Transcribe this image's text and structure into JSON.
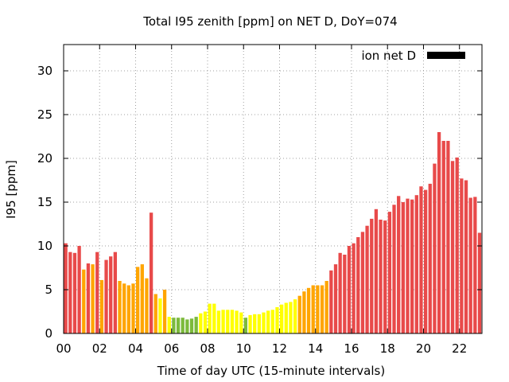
{
  "chart_data": {
    "type": "bar",
    "title": "Total I95 zenith [ppm] on NET D, DoY=074",
    "xlabel": "Time of day UTC (15-minute intervals)",
    "ylabel": "I95 [ppm]",
    "legend": {
      "label": "ion net D",
      "color": "#000000",
      "placement": "top-right"
    },
    "xlim": [
      0,
      23.25
    ],
    "ylim": [
      0,
      33
    ],
    "xticks": [
      0,
      2,
      4,
      6,
      8,
      10,
      12,
      14,
      16,
      18,
      20,
      22
    ],
    "xtick_labels": [
      "00",
      "02",
      "04",
      "06",
      "08",
      "10",
      "12",
      "14",
      "16",
      "18",
      "20",
      "22"
    ],
    "yticks": [
      0,
      5,
      10,
      15,
      20,
      25,
      30
    ],
    "ytick_labels": [
      "0",
      "5",
      "10",
      "15",
      "20",
      "25",
      "30"
    ],
    "grid": true,
    "bar_colors": {
      "high": "#e84a4a",
      "medium": "#ffa500",
      "low": "#ffff00",
      "very_low": "#7cba3c"
    },
    "interval_hours": 0.25,
    "values": [
      10.3,
      9.3,
      9.2,
      10.0,
      7.3,
      8.0,
      7.9,
      9.3,
      6.1,
      8.4,
      8.8,
      9.3,
      6.0,
      5.7,
      5.5,
      5.7,
      7.6,
      7.9,
      6.3,
      13.8,
      4.5,
      4.0,
      5.0,
      1.9,
      1.8,
      1.8,
      1.8,
      1.6,
      1.7,
      1.9,
      2.3,
      2.5,
      3.4,
      3.4,
      2.6,
      2.7,
      2.7,
      2.7,
      2.6,
      2.4,
      1.8,
      2.1,
      2.2,
      2.2,
      2.4,
      2.6,
      2.7,
      3.0,
      3.3,
      3.5,
      3.6,
      3.9,
      4.3,
      4.8,
      5.2,
      5.5,
      5.5,
      5.5,
      6.0,
      7.2,
      7.9,
      9.2,
      9.0,
      10.0,
      10.3,
      11.0,
      11.6,
      12.3,
      13.1,
      14.2,
      13.0,
      12.9,
      13.9,
      14.7,
      15.7,
      15.0,
      15.4,
      15.3,
      15.8,
      16.8,
      16.4,
      17.1,
      19.4,
      23.0,
      22.0,
      22.0,
      19.7,
      20.1,
      17.7,
      17.5,
      15.5,
      15.6,
      11.5
    ],
    "categories": [
      "high",
      "high",
      "high",
      "high",
      "medium",
      "high",
      "medium",
      "high",
      "medium",
      "high",
      "high",
      "high",
      "medium",
      "medium",
      "medium",
      "medium",
      "medium",
      "medium",
      "medium",
      "high",
      "medium",
      "low",
      "medium",
      "low",
      "very_low",
      "very_low",
      "very_low",
      "very_low",
      "very_low",
      "very_low",
      "low",
      "low",
      "low",
      "low",
      "low",
      "low",
      "low",
      "low",
      "low",
      "low",
      "very_low",
      "low",
      "low",
      "low",
      "low",
      "low",
      "low",
      "low",
      "low",
      "low",
      "low",
      "low",
      "medium",
      "medium",
      "medium",
      "medium",
      "medium",
      "medium",
      "medium",
      "high",
      "high",
      "high",
      "high",
      "high",
      "high",
      "high",
      "high",
      "high",
      "high",
      "high",
      "high",
      "high",
      "high",
      "high",
      "high",
      "high",
      "high",
      "high",
      "high",
      "high",
      "high",
      "high",
      "high",
      "high",
      "high",
      "high",
      "high",
      "high",
      "high",
      "high",
      "high",
      "high",
      "high"
    ]
  }
}
